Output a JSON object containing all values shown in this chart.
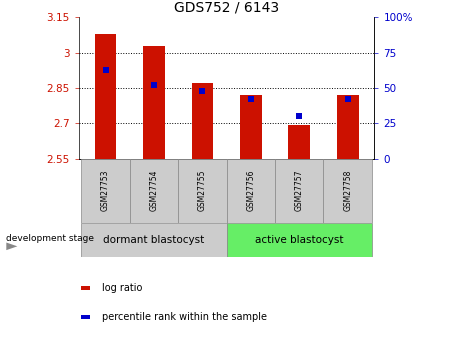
{
  "title": "GDS752 / 6143",
  "categories": [
    "GSM27753",
    "GSM27754",
    "GSM27755",
    "GSM27756",
    "GSM27757",
    "GSM27758"
  ],
  "bar_values": [
    3.08,
    3.03,
    2.87,
    2.82,
    2.695,
    2.82
  ],
  "bar_base": 2.55,
  "percentile_values": [
    63,
    52,
    48,
    42,
    30,
    42
  ],
  "ylim_left": [
    2.55,
    3.15
  ],
  "ylim_right": [
    0,
    100
  ],
  "yticks_left": [
    2.55,
    2.7,
    2.85,
    3.0,
    3.15
  ],
  "ytick_labels_left": [
    "2.55",
    "2.7",
    "2.85",
    "3",
    "3.15"
  ],
  "yticks_right": [
    0,
    25,
    50,
    75,
    100
  ],
  "ytick_labels_right": [
    "0",
    "25",
    "50",
    "75",
    "100%"
  ],
  "hlines": [
    2.7,
    2.85,
    3.0
  ],
  "bar_color": "#cc1100",
  "blue_color": "#0000cc",
  "group1_label": "dormant blastocyst",
  "group2_label": "active blastocyst",
  "group1_color": "#cccccc",
  "group2_color": "#66ee66",
  "legend_bar_label": "log ratio",
  "legend_dot_label": "percentile rank within the sample",
  "dev_stage_label": "development stage",
  "title_fontsize": 10,
  "tick_fontsize": 7.5,
  "label_fontsize": 7.5,
  "legend_fontsize": 7,
  "bar_width": 0.45
}
